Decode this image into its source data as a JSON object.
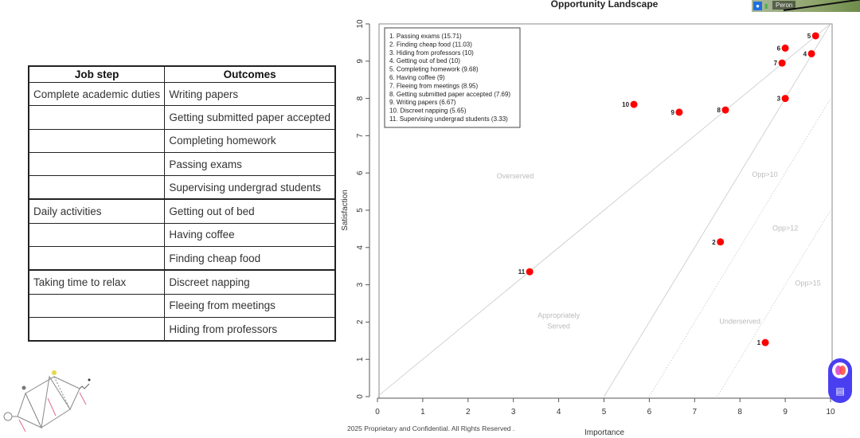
{
  "table": {
    "headers": [
      "Job step",
      "Outcomes"
    ],
    "rows": [
      {
        "job_step": "Complete academic duties",
        "outcome": "Writing papers",
        "group_start": true
      },
      {
        "job_step": "",
        "outcome": "Getting submitted paper accepted"
      },
      {
        "job_step": "",
        "outcome": "Completing homework"
      },
      {
        "job_step": "",
        "outcome": "Passing exams"
      },
      {
        "job_step": "",
        "outcome": "Supervising undergrad students"
      },
      {
        "job_step": "Daily activities",
        "outcome": "Getting out of bed",
        "group_start": true
      },
      {
        "job_step": "",
        "outcome": "Having coffee"
      },
      {
        "job_step": "",
        "outcome": "Finding cheap food"
      },
      {
        "job_step": "Taking time to relax",
        "outcome": "Discreet napping",
        "group_start": true
      },
      {
        "job_step": "",
        "outcome": "Fleeing from meetings"
      },
      {
        "job_step": "",
        "outcome": "Hiding from professors"
      }
    ]
  },
  "chart_data": {
    "type": "scatter",
    "title": "Opportunity Landscape",
    "xlabel": "Importance",
    "ylabel": "Satisfaction",
    "xlim": [
      0,
      10
    ],
    "ylim": [
      0,
      10
    ],
    "xticks": [
      0,
      1,
      2,
      3,
      4,
      5,
      6,
      7,
      8,
      9,
      10
    ],
    "yticks": [
      0,
      1,
      2,
      3,
      4,
      5,
      6,
      7,
      8,
      9,
      10
    ],
    "grid": false,
    "legend_position": "top-left",
    "marker_color": "#ff0000",
    "points": [
      {
        "id": "1",
        "name": "Passing exams",
        "score": 15.71,
        "x": 8.56,
        "y": 1.45
      },
      {
        "id": "2",
        "name": "Finding cheap food",
        "score": 11.03,
        "x": 7.57,
        "y": 4.15
      },
      {
        "id": "3",
        "name": "Hiding from professors",
        "score": 10,
        "x": 9.0,
        "y": 8.0
      },
      {
        "id": "4",
        "name": "Getting out of bed",
        "score": 10,
        "x": 9.58,
        "y": 9.2
      },
      {
        "id": "5",
        "name": "Completing homework",
        "score": 9.68,
        "x": 9.67,
        "y": 9.68
      },
      {
        "id": "6",
        "name": "Having coffee",
        "score": 9,
        "x": 9.0,
        "y": 9.35
      },
      {
        "id": "7",
        "name": "Fleeing from meetings",
        "score": 8.95,
        "x": 8.93,
        "y": 8.95
      },
      {
        "id": "8",
        "name": "Getting submitted paper accepted",
        "score": 7.69,
        "x": 7.68,
        "y": 7.69
      },
      {
        "id": "9",
        "name": "Writing papers",
        "score": 6.67,
        "x": 6.66,
        "y": 7.63
      },
      {
        "id": "10",
        "name": "Discreet napping",
        "score": 5.65,
        "x": 5.66,
        "y": 7.84
      },
      {
        "id": "11",
        "name": "Supervising undergrad students",
        "score": 3.33,
        "x": 3.36,
        "y": 3.35
      }
    ],
    "legend_entries": [
      "1. Passing exams (15.71)",
      "2. Finding cheap food (11.03)",
      "3. Hiding from professors (10)",
      "4. Getting out of bed (10)",
      "5. Completing homework (9.68)",
      "6. Having coffee (9)",
      "7. Fleeing from meetings (8.95)",
      "8. Getting submitted paper accepted (7.69)",
      "9. Writing papers (6.67)",
      "10. Discreet napping (5.65)",
      "11. Supervising undergrad students (3.33)"
    ],
    "reference_lines": [
      {
        "name": "served-diagonal",
        "from": [
          0,
          0
        ],
        "to": [
          10,
          10
        ],
        "style": "solid"
      },
      {
        "name": "opp-10",
        "from": [
          5,
          0
        ],
        "to": [
          10,
          10
        ],
        "style": "solid"
      },
      {
        "name": "opp-12",
        "from": [
          6,
          0
        ],
        "to": [
          10,
          8
        ],
        "style": "dotted"
      },
      {
        "name": "opp-15",
        "from": [
          7.5,
          0
        ],
        "to": [
          10,
          5
        ],
        "style": "dotted"
      }
    ],
    "region_labels": [
      {
        "text": "Overserved",
        "x": 3.04,
        "y": 5.85
      },
      {
        "text": "Appropriately",
        "x": 4.0,
        "y": 2.12
      },
      {
        "text": "Served",
        "x": 4.0,
        "y": 1.83
      },
      {
        "text": "Opp>10",
        "x": 8.55,
        "y": 5.9
      },
      {
        "text": "Opp>12",
        "x": 9.0,
        "y": 4.45
      },
      {
        "text": "Opp>15",
        "x": 9.5,
        "y": 2.98
      },
      {
        "text": "Underserved",
        "x": 8.0,
        "y": 1.95
      }
    ]
  },
  "footer": {
    "text": "2025 Proprietary and Confidential. All Rights Reserved ."
  },
  "video_tile": {
    "participant_name": "Peron"
  },
  "widget": {
    "icons": [
      "assistant-logo-icon",
      "chart-insight-icon"
    ]
  }
}
